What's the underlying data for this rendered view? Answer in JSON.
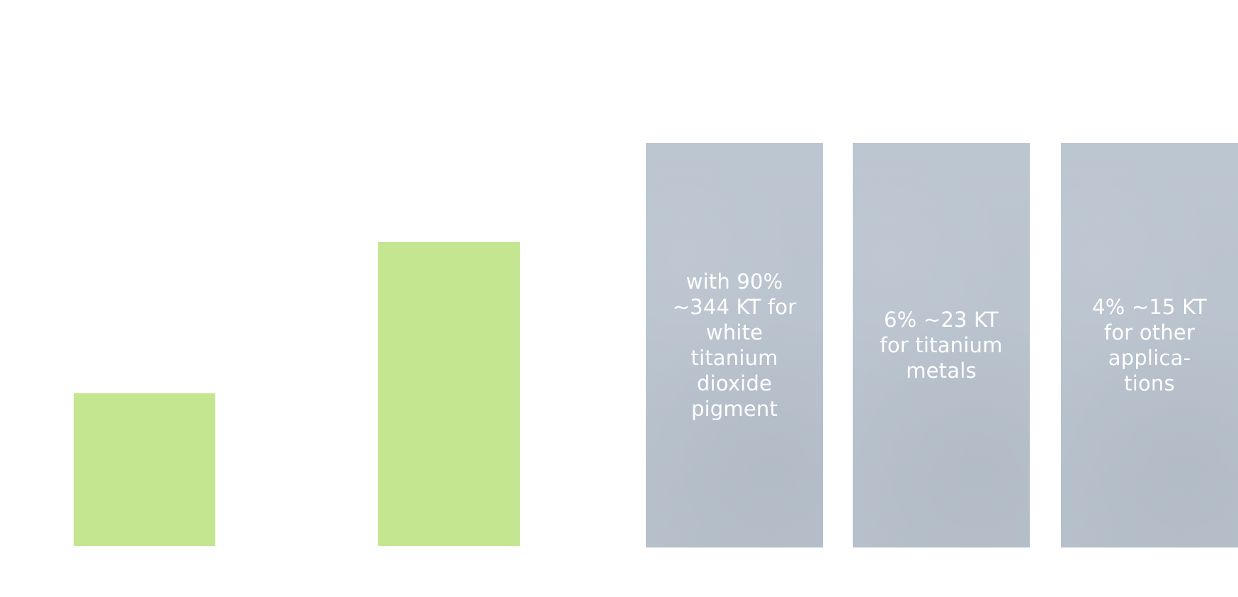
{
  "chart_data": {
    "type": "bar",
    "categories": [
      "",
      ""
    ],
    "values": [
      216,
      430
    ],
    "ylim": [
      0,
      430
    ],
    "grid": false,
    "bar_color": "#c5e690"
  },
  "panels": [
    {
      "text": "with 90%\n~344 KT for\nwhite\ntitanium\ndioxide\npigment"
    },
    {
      "text": "6% ~23 KT\nfor titanium\nmetals"
    },
    {
      "text": "4% ~15 KT\nfor other\napplica-\ntions"
    }
  ],
  "colors": {
    "background": "#ffffff",
    "panel": "#bac4cf",
    "panel_text": "#ffffff"
  }
}
